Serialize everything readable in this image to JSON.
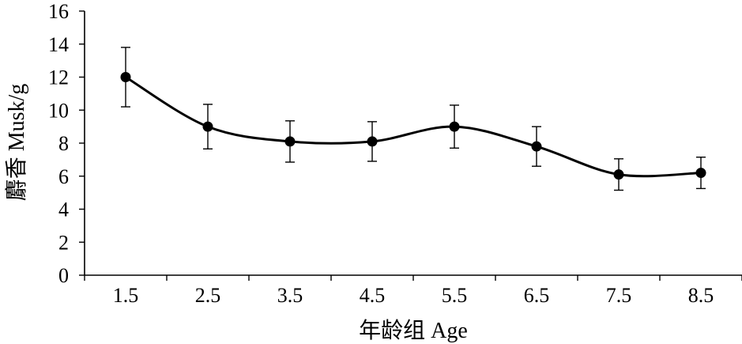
{
  "chart_data": {
    "type": "line",
    "title": "",
    "xlabel": "年龄组 Age",
    "ylabel": "麝香 Musk/g",
    "categories": [
      "1.5",
      "2.5",
      "3.5",
      "4.5",
      "5.5",
      "6.5",
      "7.5",
      "8.5"
    ],
    "series": [
      {
        "values": [
          12.0,
          9.0,
          8.1,
          8.1,
          9.0,
          7.8,
          6.1,
          6.2
        ],
        "error": [
          1.8,
          1.35,
          1.25,
          1.2,
          1.3,
          1.2,
          0.95,
          0.95
        ],
        "color": "#000000",
        "smooth": true,
        "marker": "filled-circle"
      }
    ],
    "ylim": [
      0,
      16
    ],
    "yticks": [
      0,
      2,
      4,
      6,
      8,
      10,
      12,
      14,
      16
    ],
    "grid": false,
    "legend": "none"
  }
}
